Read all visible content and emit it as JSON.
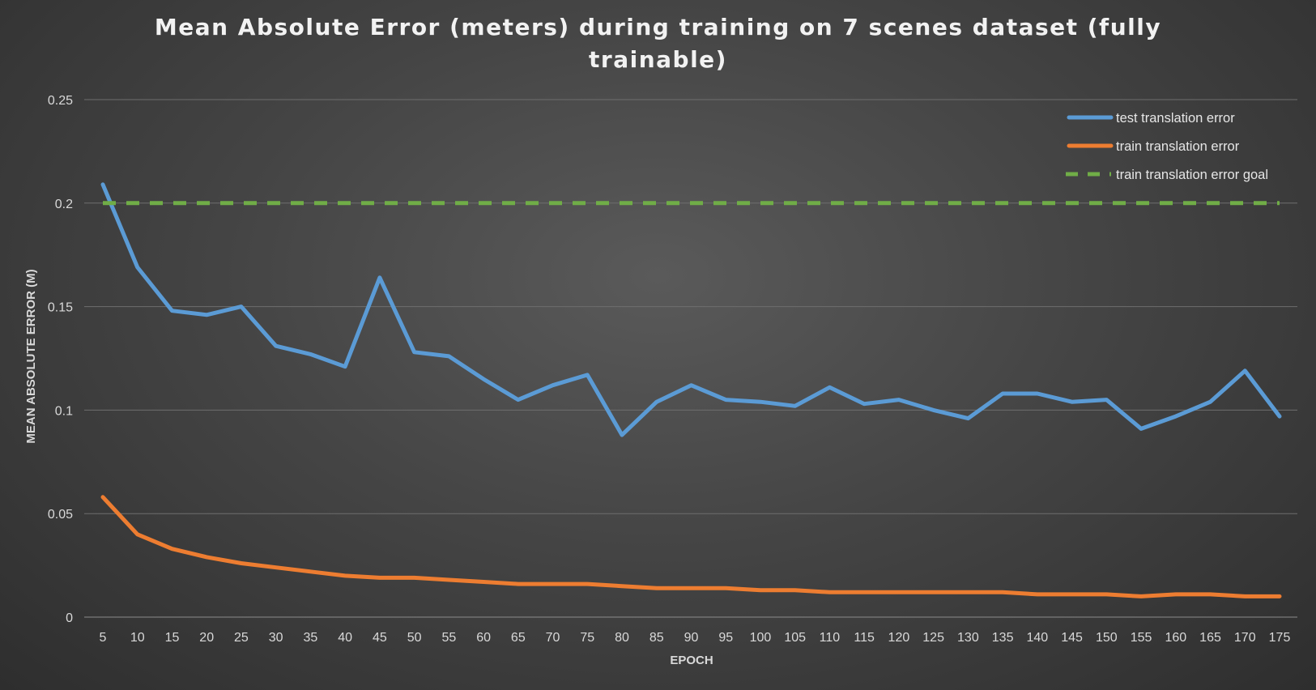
{
  "chart_data": {
    "type": "line",
    "title": "Mean Absolute Error (meters) during training on 7 scenes dataset (fully trainable)",
    "xlabel": "EPOCH",
    "ylabel": "MEAN ABSOLUTE ERROR (M)",
    "ylim": [
      0,
      0.25
    ],
    "yticks": [
      "0",
      "0.05",
      "0.1",
      "0.15",
      "0.2",
      "0.25"
    ],
    "categories": [
      "5",
      "10",
      "15",
      "20",
      "25",
      "30",
      "35",
      "40",
      "45",
      "50",
      "55",
      "60",
      "65",
      "70",
      "75",
      "80",
      "85",
      "90",
      "95",
      "100",
      "105",
      "110",
      "115",
      "120",
      "125",
      "130",
      "135",
      "140",
      "145",
      "150",
      "155",
      "160",
      "165",
      "170",
      "175"
    ],
    "grid": true,
    "legend_position": "top-right",
    "series": [
      {
        "name": "test translation error",
        "color": "#5b9bd5",
        "style": "solid",
        "values": [
          0.209,
          0.169,
          0.148,
          0.146,
          0.15,
          0.131,
          0.127,
          0.121,
          0.164,
          0.128,
          0.126,
          0.115,
          0.105,
          0.112,
          0.117,
          0.088,
          0.104,
          0.112,
          0.105,
          0.104,
          0.102,
          0.111,
          0.103,
          0.105,
          0.1,
          0.096,
          0.108,
          0.108,
          0.104,
          0.105,
          0.091,
          0.097,
          0.104,
          0.119,
          0.097
        ]
      },
      {
        "name": "train translation error",
        "color": "#ed7d31",
        "style": "solid",
        "values": [
          0.058,
          0.04,
          0.033,
          0.029,
          0.026,
          0.024,
          0.022,
          0.02,
          0.019,
          0.019,
          0.018,
          0.017,
          0.016,
          0.016,
          0.016,
          0.015,
          0.014,
          0.014,
          0.014,
          0.013,
          0.013,
          0.012,
          0.012,
          0.012,
          0.012,
          0.012,
          0.012,
          0.011,
          0.011,
          0.011,
          0.01,
          0.011,
          0.011,
          0.01,
          0.01
        ]
      },
      {
        "name": "train translation error goal",
        "color": "#70ad47",
        "style": "dashed",
        "values": [
          0.2,
          0.2,
          0.2,
          0.2,
          0.2,
          0.2,
          0.2,
          0.2,
          0.2,
          0.2,
          0.2,
          0.2,
          0.2,
          0.2,
          0.2,
          0.2,
          0.2,
          0.2,
          0.2,
          0.2,
          0.2,
          0.2,
          0.2,
          0.2,
          0.2,
          0.2,
          0.2,
          0.2,
          0.2,
          0.2,
          0.2,
          0.2,
          0.2,
          0.2,
          0.2
        ]
      }
    ]
  }
}
